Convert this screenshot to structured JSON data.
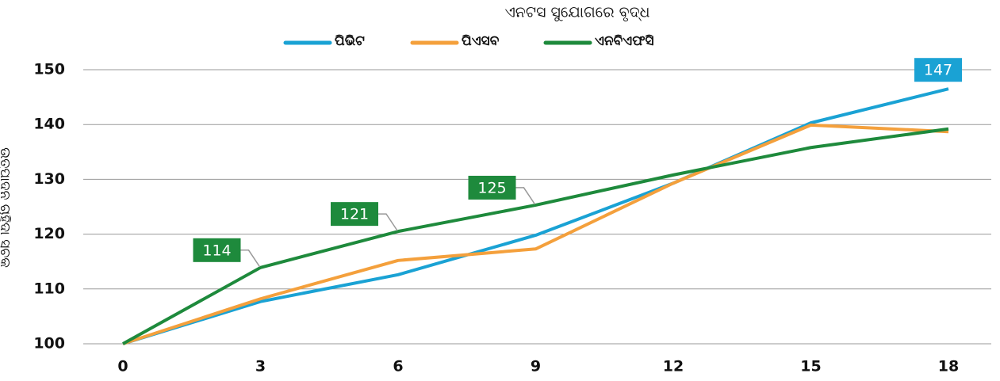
{
  "chart_data": {
    "type": "line",
    "title": "ଏନଟସ ସୁଯୋଗରେ ବୃଦ୍ଧ",
    "y_label": "ଉତ୍ପାଦନ ଚାହିଦା ସୂଚକ",
    "x": [
      0,
      3,
      6,
      9,
      12,
      15,
      18
    ],
    "xlim": [
      0,
      18
    ],
    "xticks": [
      0,
      3,
      6,
      9,
      12,
      15,
      18
    ],
    "ylim": [
      100,
      150
    ],
    "yticks": [
      100,
      110,
      120,
      130,
      140,
      150
    ],
    "grid": true,
    "legend": "top",
    "series": [
      {
        "name": "ପିଭିଟ",
        "color": "#1aa2d4",
        "values": [
          100,
          107.7,
          112.6,
          119.8,
          129.3,
          140.3,
          146.5
        ],
        "value_labels": [
          null,
          null,
          null,
          null,
          null,
          null,
          "147"
        ]
      },
      {
        "name": "ପିଏସବ",
        "color": "#f4a03c",
        "values": [
          100,
          108.2,
          115.2,
          117.3,
          129.3,
          139.9,
          138.7
        ]
      },
      {
        "name": "ଏନବିଏଫସି",
        "color": "#1e8a3c",
        "values": [
          100,
          113.9,
          120.5,
          125.3,
          130.8,
          135.8,
          139.2
        ],
        "value_labels": [
          null,
          "114",
          "121",
          "125",
          null,
          null,
          null
        ]
      }
    ]
  }
}
